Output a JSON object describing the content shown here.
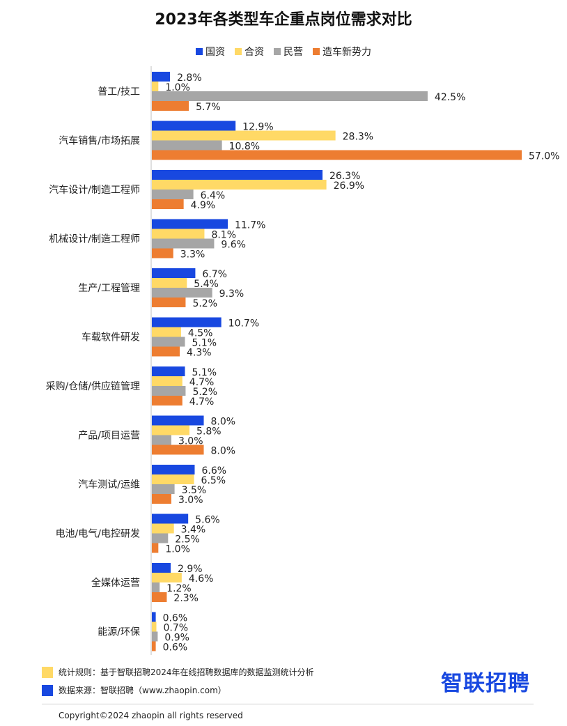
{
  "chart_data": {
    "type": "bar",
    "orientation": "horizontal",
    "title": "2023年各类型车企重点岗位需求对比",
    "categories": [
      "普工/技工",
      "汽车销售/市场拓展",
      "汽车设计/制造工程师",
      "机械设计/制造工程师",
      "生产/工程管理",
      "车载软件研发",
      "采购/仓储/供应链管理",
      "产品/项目运营",
      "汽车测试/运维",
      "电池/电气/电控研发",
      "全媒体运营",
      "能源/环保"
    ],
    "series": [
      {
        "name": "国资",
        "color": "#1848e0",
        "values": [
          2.8,
          12.9,
          26.3,
          11.7,
          6.7,
          10.7,
          5.1,
          8.0,
          6.6,
          5.6,
          2.9,
          0.6
        ]
      },
      {
        "name": "合资",
        "color": "#ffd966",
        "values": [
          1.0,
          28.3,
          26.9,
          8.1,
          5.4,
          4.5,
          4.7,
          5.8,
          6.5,
          3.4,
          4.6,
          0.7
        ]
      },
      {
        "name": "民营",
        "color": "#a6a6a6",
        "values": [
          42.5,
          10.8,
          6.4,
          9.6,
          9.3,
          5.1,
          5.2,
          3.0,
          3.5,
          2.5,
          1.2,
          0.9
        ]
      },
      {
        "name": "造车新势力",
        "color": "#ed7d31",
        "values": [
          5.7,
          57.0,
          4.9,
          3.3,
          5.2,
          4.3,
          4.7,
          8.0,
          3.0,
          1.0,
          2.3,
          0.6
        ]
      }
    ],
    "value_suffix": "%",
    "xlim": [
      0,
      57
    ],
    "grid": false,
    "legend_position": "top"
  },
  "notes": {
    "rule": "统计规则：基于智联招聘2024年在线招聘数据库的数据监测统计分析",
    "source": "数据来源：智联招聘（www.zhaopin.com）",
    "rule_color": "#ffd966",
    "source_color": "#1848e0"
  },
  "brand": {
    "logo_text": "智联招聘"
  },
  "footer": {
    "copyright": "Copyright©2024 zhaopin all rights reserved"
  }
}
